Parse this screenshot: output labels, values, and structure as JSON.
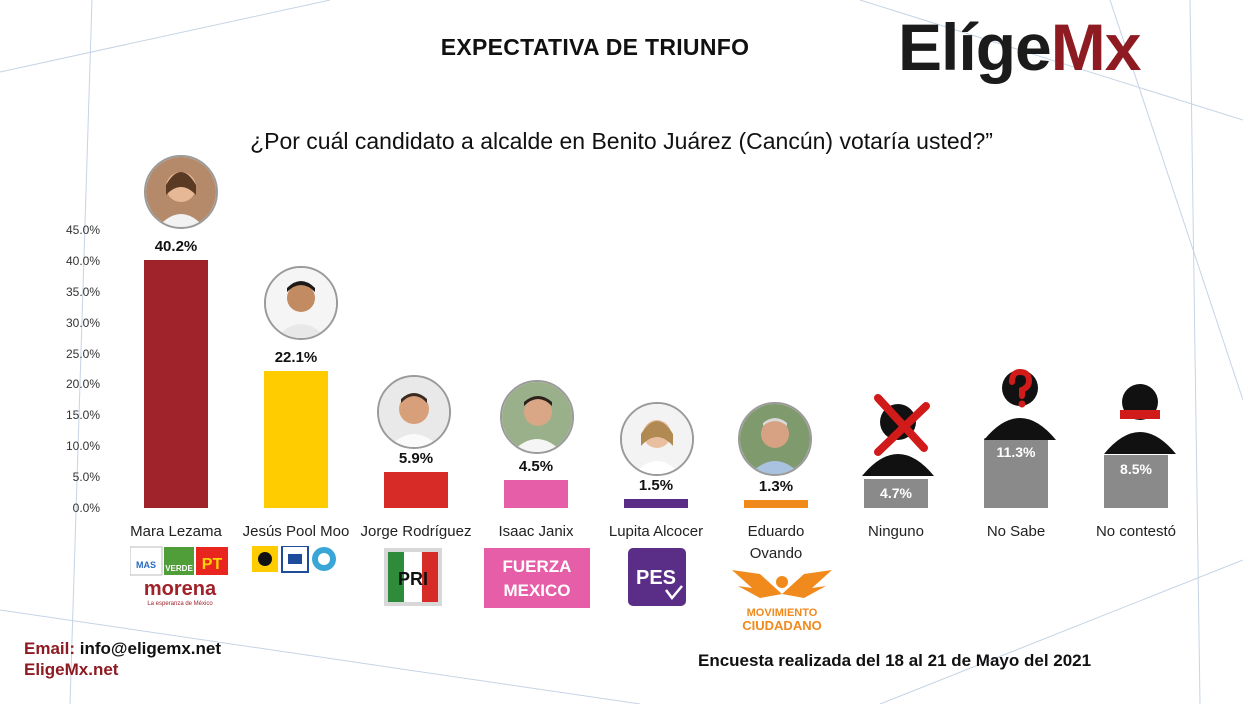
{
  "header": {
    "title": "EXPECTATIVA DE TRIUNFO",
    "brand_part1": "Elíge",
    "brand_part2": "Mx",
    "question": "¿Por cuál candidato a alcalde en Benito Juárez (Cancún) votaría usted?”"
  },
  "colors": {
    "brand_dark": "#1b1b1b",
    "brand_red": "#8e1b22",
    "morena": "#a0222a",
    "pan_prd_mc_pool": "#ffcc00",
    "pri": "#d62b27",
    "fxm": "#e75ea8",
    "pes": "#5a2d86",
    "mc": "#f08a1c",
    "gray": "#8a8a8a"
  },
  "chart_data": {
    "type": "bar",
    "title": "EXPECTATIVA DE TRIUNFO",
    "subtitle": "¿Por cuál candidato a alcalde en Benito Juárez (Cancún) votaría usted?”",
    "xlabel": "",
    "ylabel": "",
    "ylim": [
      0,
      45
    ],
    "yticks": [
      "0.0%",
      "5.0%",
      "10.0%",
      "15.0%",
      "20.0%",
      "25.0%",
      "30.0%",
      "35.0%",
      "40.0%",
      "45.0%"
    ],
    "grid": false,
    "categories": [
      "Mara Lezama",
      "Jesús Pool Moo",
      "Jorge Rodríguez",
      "Isaac Janix",
      "Lupita Alcocer",
      "Eduardo Ovando",
      "Ninguno",
      "No Sabe",
      "No contestó"
    ],
    "values": [
      40.2,
      22.1,
      5.9,
      4.5,
      1.5,
      1.3,
      4.7,
      11.3,
      8.5
    ],
    "value_labels": [
      "40.2%",
      "22.1%",
      "5.9%",
      "4.5%",
      "1.5%",
      "1.3%",
      "4.7%",
      "11.3%",
      "8.5%"
    ],
    "bar_colors": [
      "#a0222a",
      "#ffcc00",
      "#d62b27",
      "#e75ea8",
      "#5a2d86",
      "#f08a1c",
      "#8a8a8a",
      "#8a8a8a",
      "#8a8a8a"
    ]
  },
  "party_logos": {
    "mas": "MAS",
    "verde": "VERDE",
    "pt": "PT",
    "morena": "morena",
    "morena_tagline": "La esperanza de México",
    "pri": "PRI",
    "fxm_line1": "FUERZA",
    "fxm_line2": "MEXICO",
    "pes": "PES",
    "mc_line1": "MOVIMIENTO",
    "mc_line2": "CIUDADANO"
  },
  "footer": {
    "email_label": "Email:",
    "email": "info@eligemx.net",
    "site": "EligeMx.net",
    "survey_note": "Encuesta realizada del 18 al 21 de Mayo del 2021"
  }
}
